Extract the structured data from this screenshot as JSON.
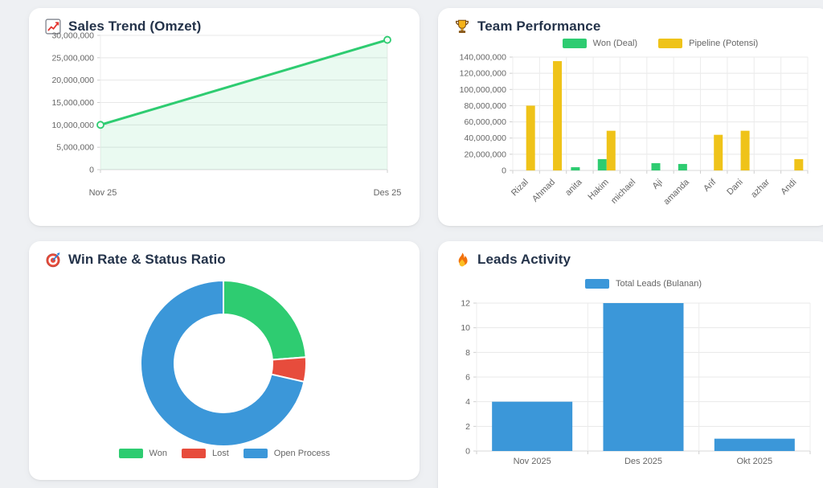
{
  "cards": {
    "sales_trend": {
      "title": "Sales Trend (Omzet)",
      "icon": "chart-increasing-icon"
    },
    "team_performance": {
      "title": "Team Performance",
      "icon": "trophy-icon"
    },
    "win_rate": {
      "title": "Win Rate & Status Ratio",
      "icon": "target-icon"
    },
    "leads_activity": {
      "title": "Leads Activity",
      "icon": "fire-icon"
    }
  },
  "colors": {
    "green": "#2ecc71",
    "yellow": "#efc319",
    "red": "#e74c3c",
    "blue": "#3b97d9",
    "title_text": "#24334a",
    "axis_text": "#666666",
    "page_bg": "#eef0f3",
    "card_bg": "#ffffff"
  },
  "chart_data": [
    {
      "id": "sales_trend",
      "type": "line",
      "title": "Sales Trend (Omzet)",
      "categories": [
        "Nov 25",
        "Des 25"
      ],
      "values": [
        10000000,
        29000000
      ],
      "ylim": [
        0,
        30000000
      ],
      "ytick_step": 5000000,
      "grid": true,
      "legend": "none",
      "line_color": "#2ecc71",
      "area_fill": "rgba(46,204,113,0.10)"
    },
    {
      "id": "team_performance",
      "type": "bar",
      "title": "Team Performance",
      "categories": [
        "Rizal",
        "Ahmad",
        "anita",
        "Hakim",
        "michael",
        "Aji",
        "amanda",
        "Arif",
        "Dani",
        "azhar",
        "Andi"
      ],
      "series": [
        {
          "name": "Won (Deal)",
          "color": "#2ecc71",
          "values": [
            0,
            0,
            4000000,
            14000000,
            0,
            9000000,
            8000000,
            0,
            0,
            0,
            0
          ]
        },
        {
          "name": "Pipeline (Potensi)",
          "color": "#efc319",
          "values": [
            80000000,
            135000000,
            0,
            49000000,
            0,
            0,
            0,
            44000000,
            49000000,
            0,
            14000000
          ]
        }
      ],
      "ylim": [
        0,
        140000000
      ],
      "ytick_step": 20000000,
      "grid": true,
      "legend": "top",
      "xtick_rotation": -45
    },
    {
      "id": "win_rate",
      "type": "pie",
      "subtype": "doughnut",
      "title": "Win Rate & Status Ratio",
      "labels": [
        "Won",
        "Lost",
        "Open Process"
      ],
      "values": [
        5,
        1,
        15
      ],
      "percentages": [
        23.8,
        4.8,
        71.4
      ],
      "colors": [
        "#2ecc71",
        "#e74c3c",
        "#3b97d9"
      ],
      "legend": "bottom",
      "start_angle_deg": 0,
      "direction": "clockwise"
    },
    {
      "id": "leads_activity",
      "type": "bar",
      "title": "Leads Activity",
      "categories": [
        "Nov 2025",
        "Des 2025",
        "Okt 2025"
      ],
      "series": [
        {
          "name": "Total Leads (Bulanan)",
          "color": "#3b97d9",
          "values": [
            4,
            12,
            1
          ]
        }
      ],
      "ylim": [
        0,
        12
      ],
      "ytick_step": 2,
      "grid": true,
      "legend": "top",
      "xtick_rotation": 0
    }
  ]
}
